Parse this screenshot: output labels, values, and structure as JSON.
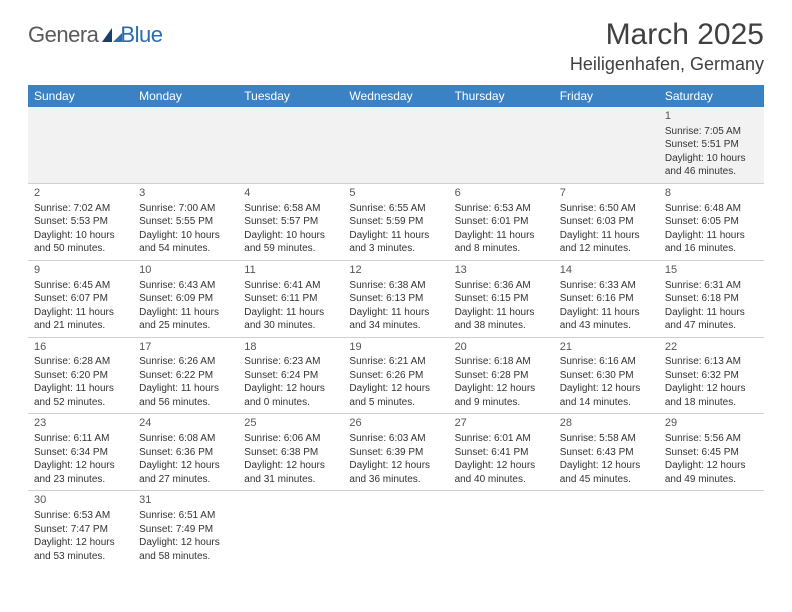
{
  "logo": {
    "text1": "Genera",
    "text2": "Blue"
  },
  "title": "March 2025",
  "location": "Heiligenhafen, Germany",
  "colors": {
    "header_bg": "#3b82c4",
    "header_text": "#ffffff",
    "body_text": "#333333",
    "logo_gray": "#5a5a5a",
    "logo_blue": "#2a6cb0",
    "alt_row_bg": "#f2f2f2",
    "border": "#d0d0d0"
  },
  "weekdays": [
    "Sunday",
    "Monday",
    "Tuesday",
    "Wednesday",
    "Thursday",
    "Friday",
    "Saturday"
  ],
  "weeks": [
    [
      null,
      null,
      null,
      null,
      null,
      null,
      {
        "day": "1",
        "sunrise": "Sunrise: 7:05 AM",
        "sunset": "Sunset: 5:51 PM",
        "daylight": "Daylight: 10 hours and 46 minutes."
      }
    ],
    [
      {
        "day": "2",
        "sunrise": "Sunrise: 7:02 AM",
        "sunset": "Sunset: 5:53 PM",
        "daylight": "Daylight: 10 hours and 50 minutes."
      },
      {
        "day": "3",
        "sunrise": "Sunrise: 7:00 AM",
        "sunset": "Sunset: 5:55 PM",
        "daylight": "Daylight: 10 hours and 54 minutes."
      },
      {
        "day": "4",
        "sunrise": "Sunrise: 6:58 AM",
        "sunset": "Sunset: 5:57 PM",
        "daylight": "Daylight: 10 hours and 59 minutes."
      },
      {
        "day": "5",
        "sunrise": "Sunrise: 6:55 AM",
        "sunset": "Sunset: 5:59 PM",
        "daylight": "Daylight: 11 hours and 3 minutes."
      },
      {
        "day": "6",
        "sunrise": "Sunrise: 6:53 AM",
        "sunset": "Sunset: 6:01 PM",
        "daylight": "Daylight: 11 hours and 8 minutes."
      },
      {
        "day": "7",
        "sunrise": "Sunrise: 6:50 AM",
        "sunset": "Sunset: 6:03 PM",
        "daylight": "Daylight: 11 hours and 12 minutes."
      },
      {
        "day": "8",
        "sunrise": "Sunrise: 6:48 AM",
        "sunset": "Sunset: 6:05 PM",
        "daylight": "Daylight: 11 hours and 16 minutes."
      }
    ],
    [
      {
        "day": "9",
        "sunrise": "Sunrise: 6:45 AM",
        "sunset": "Sunset: 6:07 PM",
        "daylight": "Daylight: 11 hours and 21 minutes."
      },
      {
        "day": "10",
        "sunrise": "Sunrise: 6:43 AM",
        "sunset": "Sunset: 6:09 PM",
        "daylight": "Daylight: 11 hours and 25 minutes."
      },
      {
        "day": "11",
        "sunrise": "Sunrise: 6:41 AM",
        "sunset": "Sunset: 6:11 PM",
        "daylight": "Daylight: 11 hours and 30 minutes."
      },
      {
        "day": "12",
        "sunrise": "Sunrise: 6:38 AM",
        "sunset": "Sunset: 6:13 PM",
        "daylight": "Daylight: 11 hours and 34 minutes."
      },
      {
        "day": "13",
        "sunrise": "Sunrise: 6:36 AM",
        "sunset": "Sunset: 6:15 PM",
        "daylight": "Daylight: 11 hours and 38 minutes."
      },
      {
        "day": "14",
        "sunrise": "Sunrise: 6:33 AM",
        "sunset": "Sunset: 6:16 PM",
        "daylight": "Daylight: 11 hours and 43 minutes."
      },
      {
        "day": "15",
        "sunrise": "Sunrise: 6:31 AM",
        "sunset": "Sunset: 6:18 PM",
        "daylight": "Daylight: 11 hours and 47 minutes."
      }
    ],
    [
      {
        "day": "16",
        "sunrise": "Sunrise: 6:28 AM",
        "sunset": "Sunset: 6:20 PM",
        "daylight": "Daylight: 11 hours and 52 minutes."
      },
      {
        "day": "17",
        "sunrise": "Sunrise: 6:26 AM",
        "sunset": "Sunset: 6:22 PM",
        "daylight": "Daylight: 11 hours and 56 minutes."
      },
      {
        "day": "18",
        "sunrise": "Sunrise: 6:23 AM",
        "sunset": "Sunset: 6:24 PM",
        "daylight": "Daylight: 12 hours and 0 minutes."
      },
      {
        "day": "19",
        "sunrise": "Sunrise: 6:21 AM",
        "sunset": "Sunset: 6:26 PM",
        "daylight": "Daylight: 12 hours and 5 minutes."
      },
      {
        "day": "20",
        "sunrise": "Sunrise: 6:18 AM",
        "sunset": "Sunset: 6:28 PM",
        "daylight": "Daylight: 12 hours and 9 minutes."
      },
      {
        "day": "21",
        "sunrise": "Sunrise: 6:16 AM",
        "sunset": "Sunset: 6:30 PM",
        "daylight": "Daylight: 12 hours and 14 minutes."
      },
      {
        "day": "22",
        "sunrise": "Sunrise: 6:13 AM",
        "sunset": "Sunset: 6:32 PM",
        "daylight": "Daylight: 12 hours and 18 minutes."
      }
    ],
    [
      {
        "day": "23",
        "sunrise": "Sunrise: 6:11 AM",
        "sunset": "Sunset: 6:34 PM",
        "daylight": "Daylight: 12 hours and 23 minutes."
      },
      {
        "day": "24",
        "sunrise": "Sunrise: 6:08 AM",
        "sunset": "Sunset: 6:36 PM",
        "daylight": "Daylight: 12 hours and 27 minutes."
      },
      {
        "day": "25",
        "sunrise": "Sunrise: 6:06 AM",
        "sunset": "Sunset: 6:38 PM",
        "daylight": "Daylight: 12 hours and 31 minutes."
      },
      {
        "day": "26",
        "sunrise": "Sunrise: 6:03 AM",
        "sunset": "Sunset: 6:39 PM",
        "daylight": "Daylight: 12 hours and 36 minutes."
      },
      {
        "day": "27",
        "sunrise": "Sunrise: 6:01 AM",
        "sunset": "Sunset: 6:41 PM",
        "daylight": "Daylight: 12 hours and 40 minutes."
      },
      {
        "day": "28",
        "sunrise": "Sunrise: 5:58 AM",
        "sunset": "Sunset: 6:43 PM",
        "daylight": "Daylight: 12 hours and 45 minutes."
      },
      {
        "day": "29",
        "sunrise": "Sunrise: 5:56 AM",
        "sunset": "Sunset: 6:45 PM",
        "daylight": "Daylight: 12 hours and 49 minutes."
      }
    ],
    [
      {
        "day": "30",
        "sunrise": "Sunrise: 6:53 AM",
        "sunset": "Sunset: 7:47 PM",
        "daylight": "Daylight: 12 hours and 53 minutes."
      },
      {
        "day": "31",
        "sunrise": "Sunrise: 6:51 AM",
        "sunset": "Sunset: 7:49 PM",
        "daylight": "Daylight: 12 hours and 58 minutes."
      },
      null,
      null,
      null,
      null,
      null
    ]
  ]
}
